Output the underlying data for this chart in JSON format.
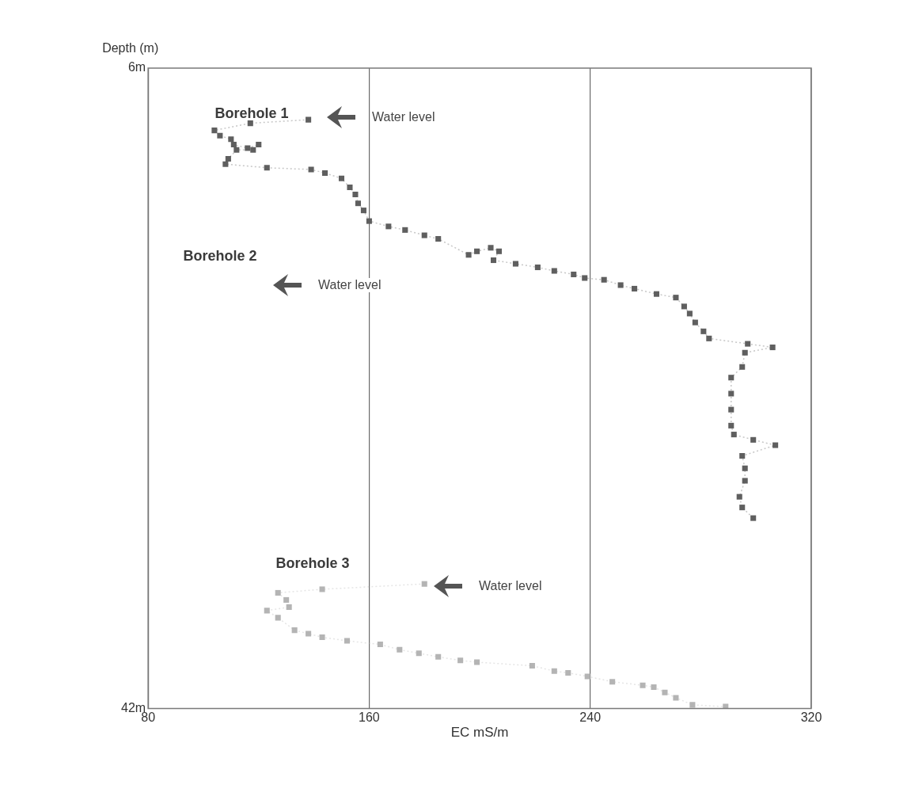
{
  "chart_data": {
    "type": "line",
    "xlabel": "EC mS/m",
    "ylabel": "Depth (m)",
    "xlim": [
      80,
      320
    ],
    "xticks": [
      80,
      160,
      240,
      320
    ],
    "ylim": [
      42,
      6
    ],
    "yticks": [
      {
        "value": 6,
        "label": "6m"
      },
      {
        "value": 42,
        "label": "42m"
      }
    ],
    "grid": "x",
    "legend": false,
    "marker": "square",
    "line_style": "dotted",
    "series": [
      {
        "color": "#5f5f5f",
        "x": [
          138,
          117,
          104,
          106,
          110,
          111,
          116,
          120,
          118,
          112,
          109,
          108,
          123,
          139,
          144,
          150,
          153,
          155,
          156,
          158,
          160,
          167,
          173,
          180,
          185,
          196,
          199,
          204,
          207,
          205,
          213,
          221,
          227,
          234,
          238,
          245,
          251,
          256,
          264,
          271,
          274,
          276,
          278,
          281,
          283,
          297,
          306,
          296,
          295,
          291,
          291,
          291,
          291,
          292,
          299,
          307,
          295,
          296,
          296,
          294,
          295,
          299
        ],
        "values": [
          8.9,
          9.1,
          9.5,
          9.8,
          10.0,
          10.3,
          10.5,
          10.3,
          10.6,
          10.6,
          11.1,
          11.4,
          11.6,
          11.7,
          11.9,
          12.2,
          12.7,
          13.1,
          13.6,
          14.0,
          14.6,
          14.9,
          15.1,
          15.4,
          15.6,
          16.5,
          16.3,
          16.1,
          16.3,
          16.8,
          17.0,
          17.2,
          17.4,
          17.6,
          17.8,
          17.9,
          18.2,
          18.4,
          18.7,
          18.9,
          19.4,
          19.8,
          20.3,
          20.8,
          21.2,
          21.5,
          21.7,
          22.0,
          22.8,
          23.4,
          24.3,
          25.2,
          26.1,
          26.6,
          26.9,
          27.2,
          27.8,
          28.5,
          29.2,
          30.1,
          30.7,
          31.3
        ]
      },
      {
        "color": "#b4b4b4",
        "x": [
          180,
          143,
          127,
          130,
          131,
          123,
          127,
          133,
          138,
          143,
          152,
          164,
          171,
          178,
          185,
          193,
          199,
          219,
          227,
          232,
          239,
          248,
          259,
          263,
          267,
          271,
          277,
          289
        ],
        "values": [
          35.0,
          35.3,
          35.5,
          35.9,
          36.3,
          36.5,
          36.9,
          37.6,
          37.8,
          38.0,
          38.2,
          38.4,
          38.7,
          38.9,
          39.1,
          39.3,
          39.4,
          39.6,
          39.9,
          40.0,
          40.2,
          40.5,
          40.7,
          40.8,
          41.1,
          41.4,
          41.8,
          41.9
        ]
      }
    ],
    "annotations": [
      "Borehole 1",
      "Water level",
      "Borehole 2",
      "Water level",
      "Borehole 3",
      "Water level"
    ]
  }
}
